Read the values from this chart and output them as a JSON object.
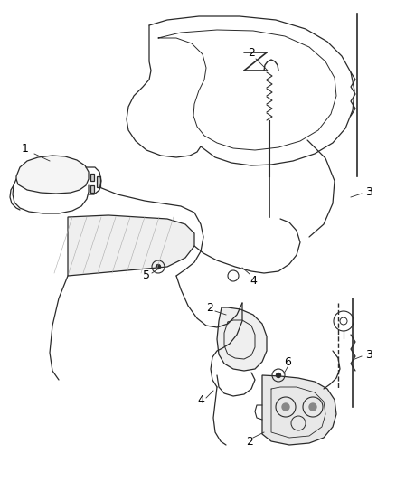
{
  "background_color": "#ffffff",
  "line_color": "#2a2a2a",
  "label_color": "#000000",
  "fig_width": 4.38,
  "fig_height": 5.33,
  "dpi": 100,
  "lw": 0.9
}
